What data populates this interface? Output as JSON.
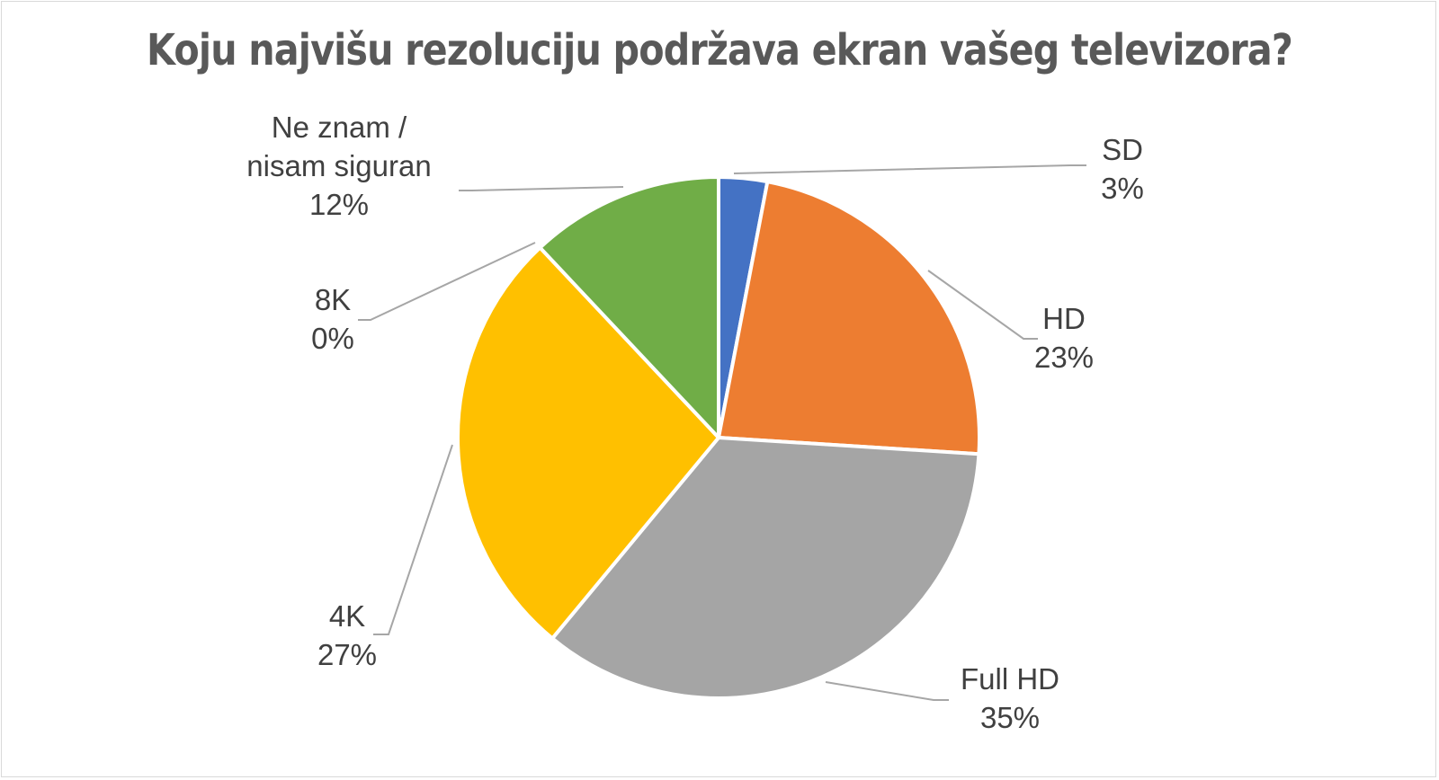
{
  "chart_data": {
    "type": "pie",
    "title": "Koju najvišu rezoluciju podržava ekran vašeg televizora?",
    "categories": [
      "SD",
      "HD",
      "Full HD",
      "4K",
      "8K",
      "Ne znam / nisam siguran"
    ],
    "values": [
      3,
      23,
      35,
      27,
      0,
      12
    ],
    "value_labels": [
      "3%",
      "23%",
      "35%",
      "27%",
      "0%",
      "12%"
    ],
    "label_lines": [
      [
        "SD"
      ],
      [
        "HD"
      ],
      [
        "Full HD"
      ],
      [
        "4K"
      ],
      [
        "8K"
      ],
      [
        "Ne znam /",
        "nisam siguran"
      ]
    ],
    "colors": [
      "#4472C4",
      "#ED7D31",
      "#A5A5A5",
      "#FFC000",
      "#5B9BD5",
      "#70AD47"
    ],
    "legend": "none",
    "data_labels": "outside with leader lines"
  }
}
